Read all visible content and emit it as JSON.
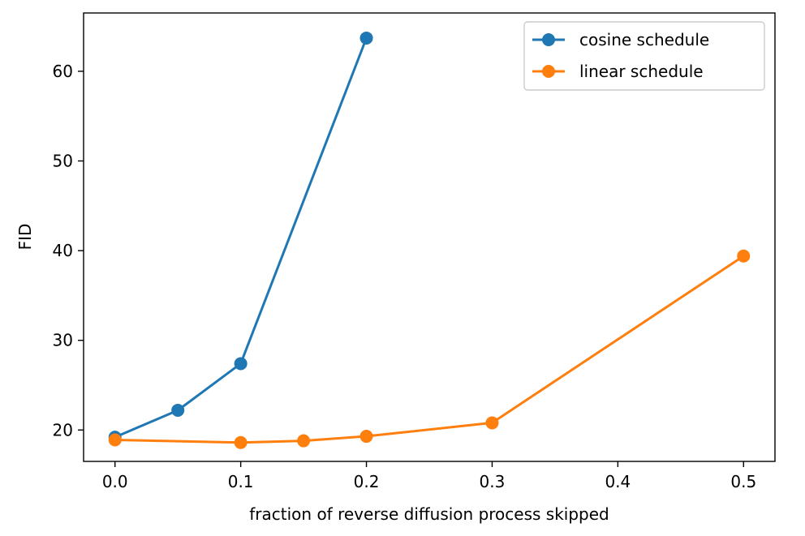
{
  "chart_data": {
    "type": "line",
    "xlabel": "fraction of reverse diffusion process skipped",
    "ylabel": "FID",
    "xlim": [
      -0.025,
      0.525
    ],
    "ylim": [
      16.5,
      66.5
    ],
    "xticks": [
      0.0,
      0.1,
      0.2,
      0.3,
      0.4,
      0.5
    ],
    "yticks": [
      20,
      30,
      40,
      50,
      60
    ],
    "xtick_labels": [
      "0.0",
      "0.1",
      "0.2",
      "0.3",
      "0.4",
      "0.5"
    ],
    "ytick_labels": [
      "20",
      "30",
      "40",
      "50",
      "60"
    ],
    "grid": false,
    "legend_position": "top-right",
    "series": [
      {
        "name": "cosine schedule",
        "color": "#1f77b4",
        "marker": "circle",
        "x": [
          0.0,
          0.05,
          0.1,
          0.2
        ],
        "y": [
          19.2,
          22.2,
          27.4,
          63.7
        ]
      },
      {
        "name": "linear schedule",
        "color": "#ff7f0e",
        "marker": "circle",
        "x": [
          0.0,
          0.1,
          0.15,
          0.2,
          0.3,
          0.5
        ],
        "y": [
          18.9,
          18.6,
          18.8,
          19.3,
          20.8,
          39.4
        ]
      }
    ]
  }
}
